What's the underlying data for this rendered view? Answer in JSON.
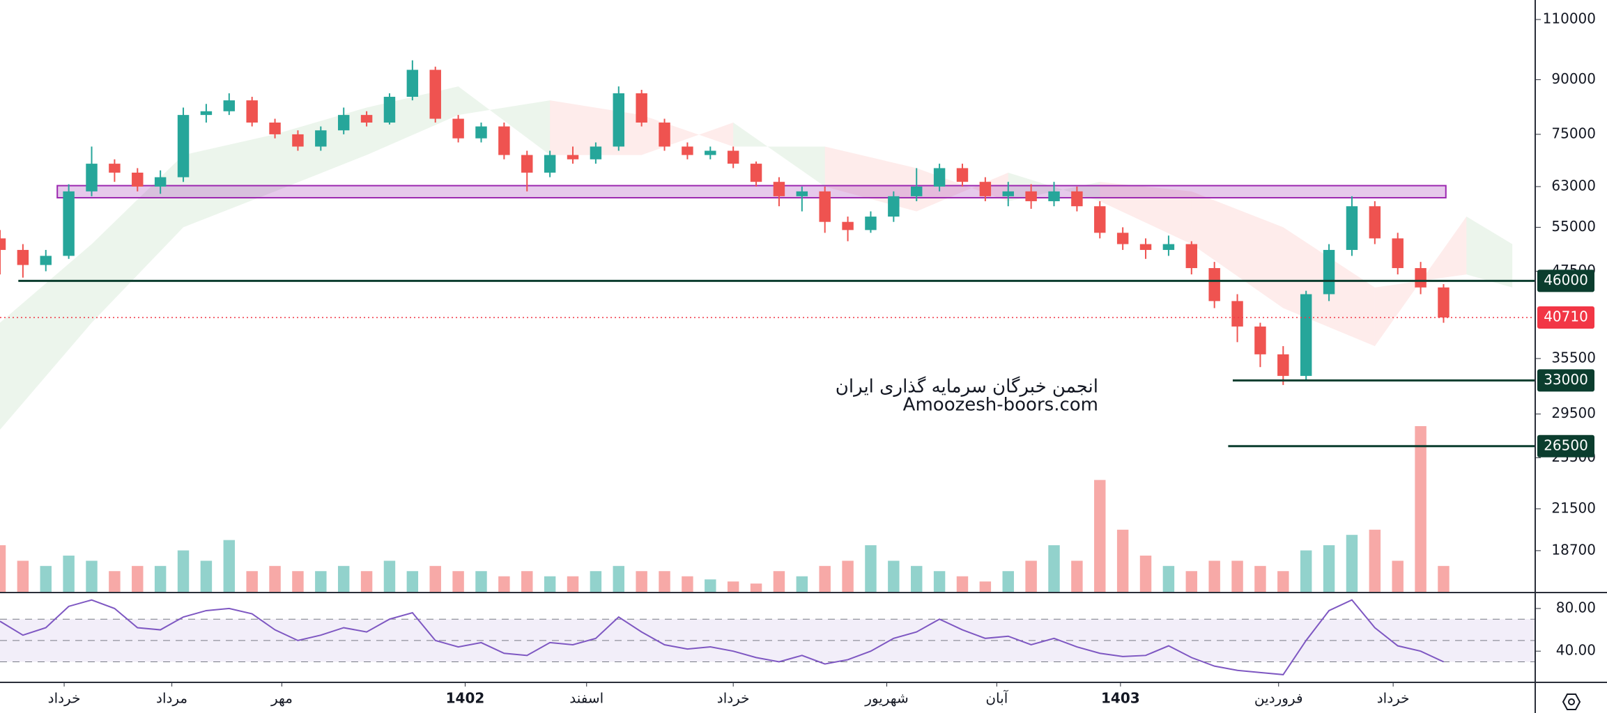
{
  "chart_data": {
    "type": "candlestick",
    "watermark": [
      "انجمن خبرگان سرمایه گذاری ایران",
      "Amoozesh-boors.com"
    ],
    "xlim": [
      0,
      67
    ],
    "xticks": [
      {
        "value": 2.8,
        "label": "خرداد"
      },
      {
        "value": 7.5,
        "label": "مرداد"
      },
      {
        "value": 12.3,
        "label": "مهر"
      },
      {
        "value": 20.3,
        "label": "1402"
      },
      {
        "value": 25.6,
        "label": "اسفند"
      },
      {
        "value": 32.0,
        "label": "خرداد"
      },
      {
        "value": 38.7,
        "label": "شهریور"
      },
      {
        "value": 43.5,
        "label": "آبان"
      },
      {
        "value": 48.9,
        "label": "1403"
      },
      {
        "value": 55.8,
        "label": "فروردین"
      },
      {
        "value": 60.8,
        "label": "خرداد"
      }
    ],
    "ylim": [
      16300,
      117400
    ],
    "log_scale": true,
    "yticks": [
      110000,
      90000,
      75000,
      63000,
      55000,
      47500,
      35500,
      29500,
      25500,
      21500,
      18700
    ],
    "candles": {
      "open": [
        53000,
        51000,
        48500,
        50000,
        62000,
        68000,
        66000,
        63000,
        65000,
        80000,
        81000,
        84000,
        78000,
        75000,
        72000,
        76000,
        80000,
        78000,
        85000,
        93000,
        79000,
        74000,
        77000,
        70000,
        66000,
        70000,
        69000,
        72000,
        86000,
        78000,
        72000,
        70000,
        71000,
        68000,
        64000,
        61000,
        62000,
        56000,
        54500,
        57000,
        61000,
        63000,
        67000,
        64000,
        61000,
        62000,
        60000,
        62000,
        59000,
        54000,
        52000,
        51000,
        52000,
        48000,
        43000,
        39500,
        36000,
        33500,
        44000,
        51000,
        59000,
        53000,
        48000,
        45000
      ],
      "high": [
        54500,
        52000,
        51000,
        63500,
        72000,
        69000,
        67000,
        66500,
        82000,
        83000,
        86000,
        85000,
        79000,
        76000,
        77000,
        82000,
        81000,
        86000,
        96000,
        94000,
        80000,
        78000,
        78000,
        71000,
        71000,
        72000,
        73000,
        88000,
        87000,
        79000,
        73000,
        72000,
        72000,
        68500,
        65000,
        63000,
        63000,
        57000,
        58000,
        62000,
        67000,
        68000,
        68000,
        65000,
        64000,
        63500,
        64000,
        63000,
        60000,
        55000,
        53000,
        53500,
        52500,
        49000,
        44000,
        40000,
        37000,
        44500,
        52000,
        61000,
        60000,
        54000,
        49000,
        45500
      ],
      "low": [
        47000,
        46500,
        47500,
        49500,
        61000,
        64000,
        62000,
        61500,
        64000,
        78000,
        80000,
        77000,
        74000,
        71000,
        71000,
        75000,
        77000,
        77500,
        84000,
        78000,
        73000,
        73000,
        69000,
        62000,
        65000,
        68000,
        68000,
        71000,
        77000,
        71000,
        69000,
        69000,
        67000,
        63000,
        59000,
        58000,
        54000,
        52500,
        54000,
        56000,
        60000,
        62000,
        63000,
        60000,
        59000,
        58500,
        59000,
        58000,
        53000,
        51000,
        49500,
        50000,
        47000,
        42000,
        37500,
        34500,
        32500,
        33000,
        43000,
        50000,
        52000,
        47000,
        44000,
        40000
      ],
      "close": [
        51000,
        48500,
        50000,
        62000,
        68000,
        66000,
        63000,
        65000,
        80000,
        81000,
        84000,
        78000,
        75000,
        72000,
        76000,
        80000,
        78000,
        85000,
        93000,
        79000,
        74000,
        77000,
        70000,
        66000,
        70000,
        69000,
        72000,
        86000,
        78000,
        72000,
        70000,
        71000,
        68000,
        64000,
        61000,
        62000,
        56000,
        54500,
        57000,
        61000,
        63000,
        67000,
        64000,
        61000,
        62000,
        60000,
        62000,
        59000,
        54000,
        52000,
        51000,
        52000,
        48000,
        43000,
        39500,
        36000,
        33500,
        44000,
        51000,
        59000,
        53000,
        48000,
        45000,
        40710
      ]
    },
    "up_color": "#26a69a",
    "down_color": "#ef5350",
    "volume": [
      45,
      30,
      25,
      35,
      30,
      20,
      25,
      25,
      40,
      30,
      50,
      20,
      25,
      20,
      20,
      25,
      20,
      30,
      20,
      25,
      20,
      20,
      15,
      20,
      15,
      15,
      20,
      25,
      20,
      20,
      15,
      12,
      10,
      8,
      20,
      15,
      25,
      30,
      45,
      30,
      25,
      20,
      15,
      10,
      20,
      30,
      45,
      30,
      108,
      60,
      35,
      25,
      20,
      30,
      30,
      25,
      20,
      40,
      45,
      55,
      60,
      30,
      160,
      25
    ],
    "cloud": {
      "x": [
        0,
        4,
        8,
        12,
        16,
        20,
        24,
        28,
        32,
        36,
        40,
        44,
        48,
        52,
        56,
        60,
        64,
        66
      ],
      "span_a": [
        40000,
        52000,
        70000,
        75000,
        82000,
        88000,
        70000,
        70000,
        78000,
        63000,
        58000,
        66000,
        60000,
        52000,
        42000,
        37000,
        57000,
        52000
      ],
      "span_b": [
        28000,
        40000,
        55000,
        62000,
        70000,
        80000,
        84000,
        80000,
        72000,
        72000,
        67000,
        60000,
        64000,
        62000,
        55000,
        45000,
        47000,
        45000
      ]
    },
    "zone": {
      "x": [
        2.5,
        63.1
      ],
      "y": [
        60700,
        63200
      ],
      "color": "#9c27b0"
    },
    "levels": [
      {
        "value": 46000,
        "from": 0.8
      },
      {
        "value": 33000,
        "from": 53.8
      },
      {
        "value": 26500,
        "from": 53.6
      }
    ],
    "level_color": "#0b3d2e",
    "last_price": 40710,
    "last_color": "#f23645",
    "rsi": {
      "values": [
        68,
        55,
        62,
        82,
        88,
        80,
        62,
        60,
        72,
        78,
        80,
        75,
        60,
        50,
        55,
        62,
        58,
        70,
        76,
        50,
        44,
        48,
        38,
        36,
        48,
        46,
        52,
        72,
        58,
        46,
        42,
        44,
        40,
        34,
        30,
        36,
        28,
        32,
        40,
        52,
        58,
        70,
        60,
        52,
        54,
        46,
        52,
        44,
        38,
        35,
        36,
        45,
        34,
        26,
        22,
        20,
        18,
        50,
        78,
        88,
        62,
        45,
        40,
        30
      ],
      "color": "#7e57c2",
      "ylim": [
        11.4,
        94.3
      ],
      "yticks": [
        {
          "value": 80,
          "label": "80.00"
        },
        {
          "value": 40,
          "label": "40.00"
        }
      ],
      "levels": [
        70,
        50,
        30
      ]
    }
  }
}
